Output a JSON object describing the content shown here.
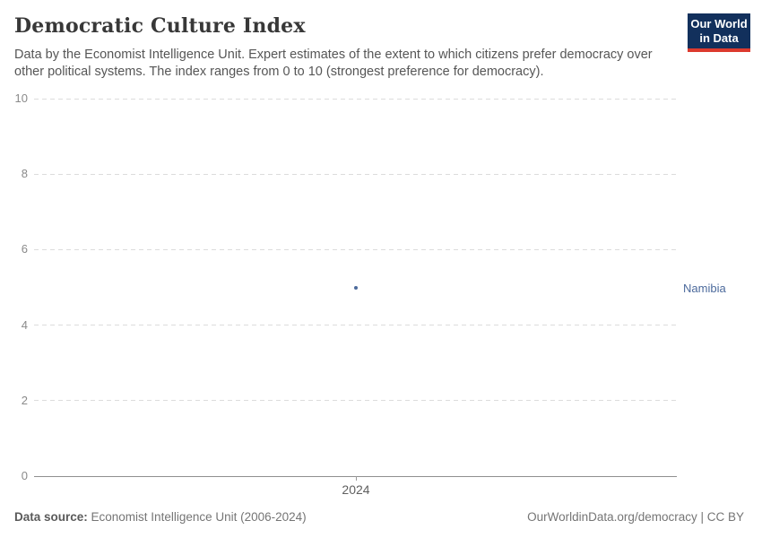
{
  "header": {
    "title": "Democratic Culture Index",
    "subtitle": "Data by the Economist Intelligence Unit. Expert estimates of the extent to which citizens prefer democracy over other political systems. The index ranges from 0 to 10 (strongest preference for democracy).",
    "logo": {
      "line1": "Our World",
      "line2": "in Data"
    }
  },
  "chart_data": {
    "type": "scatter",
    "title": "Democratic Culture Index",
    "x": [
      2024
    ],
    "series": [
      {
        "name": "Namibia",
        "values": [
          5.0
        ],
        "color": "#4c6a9c"
      }
    ],
    "xlabel": "",
    "ylabel": "",
    "ylim": [
      0,
      10
    ],
    "yticks": [
      0,
      2,
      4,
      6,
      8,
      10
    ],
    "xticks": [
      "2024"
    ],
    "grid": "horizontal-dashed",
    "legend_position": "entity-label-right"
  },
  "footer": {
    "source_label": "Data source:",
    "source_text": " Economist Intelligence Unit (2006-2024)",
    "url": "OurWorldinData.org/democracy",
    "license": " | CC BY"
  },
  "colors": {
    "accent_blue": "#4c6a9c",
    "logo_navy": "#12305c",
    "logo_red": "#dc3a2e",
    "gridline": "#dcdcdc",
    "axis": "#8f8f8f"
  }
}
